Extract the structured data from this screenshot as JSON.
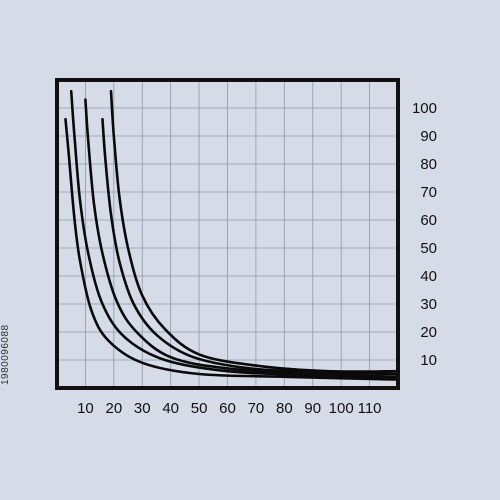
{
  "chart_data": {
    "type": "line",
    "title": "",
    "xlabel": "",
    "ylabel": "",
    "xlim": [
      0,
      120
    ],
    "ylim": [
      0,
      110
    ],
    "x_ticks": [
      10,
      20,
      30,
      40,
      50,
      60,
      70,
      80,
      90,
      100,
      110
    ],
    "y_ticks": [
      10,
      20,
      30,
      40,
      50,
      60,
      70,
      80,
      90,
      100
    ],
    "grid": true,
    "legend": "none",
    "series": [
      {
        "x": [
          3,
          4,
          6,
          8,
          12,
          18,
          30,
          50,
          80,
          120
        ],
        "y": [
          96,
          85,
          62,
          46,
          28,
          17,
          9,
          5,
          4,
          3
        ]
      },
      {
        "x": [
          5,
          6,
          8,
          11,
          16,
          24,
          38,
          60,
          90,
          120
        ],
        "y": [
          106,
          92,
          68,
          48,
          30,
          18,
          10,
          6,
          4.5,
          3.5
        ]
      },
      {
        "x": [
          10,
          11,
          13,
          16,
          21,
          28,
          40,
          60,
          90,
          120
        ],
        "y": [
          103,
          88,
          66,
          48,
          31,
          20,
          11,
          7,
          5,
          4
        ]
      },
      {
        "x": [
          16,
          17,
          19,
          22,
          27,
          35,
          48,
          68,
          95,
          120
        ],
        "y": [
          96,
          82,
          62,
          45,
          30,
          19,
          11,
          7,
          5.5,
          5
        ]
      },
      {
        "x": [
          19,
          20,
          22,
          25,
          30,
          38,
          50,
          70,
          95,
          120
        ],
        "y": [
          106,
          90,
          68,
          50,
          33,
          21,
          12,
          8,
          6,
          6
        ]
      }
    ]
  },
  "colors": {
    "background": "#d5dce7",
    "frame": "#111111",
    "grid": "#8f98aa",
    "lines": "#0a0a0a"
  },
  "watermark": {
    "image_id": "1980096088"
  }
}
